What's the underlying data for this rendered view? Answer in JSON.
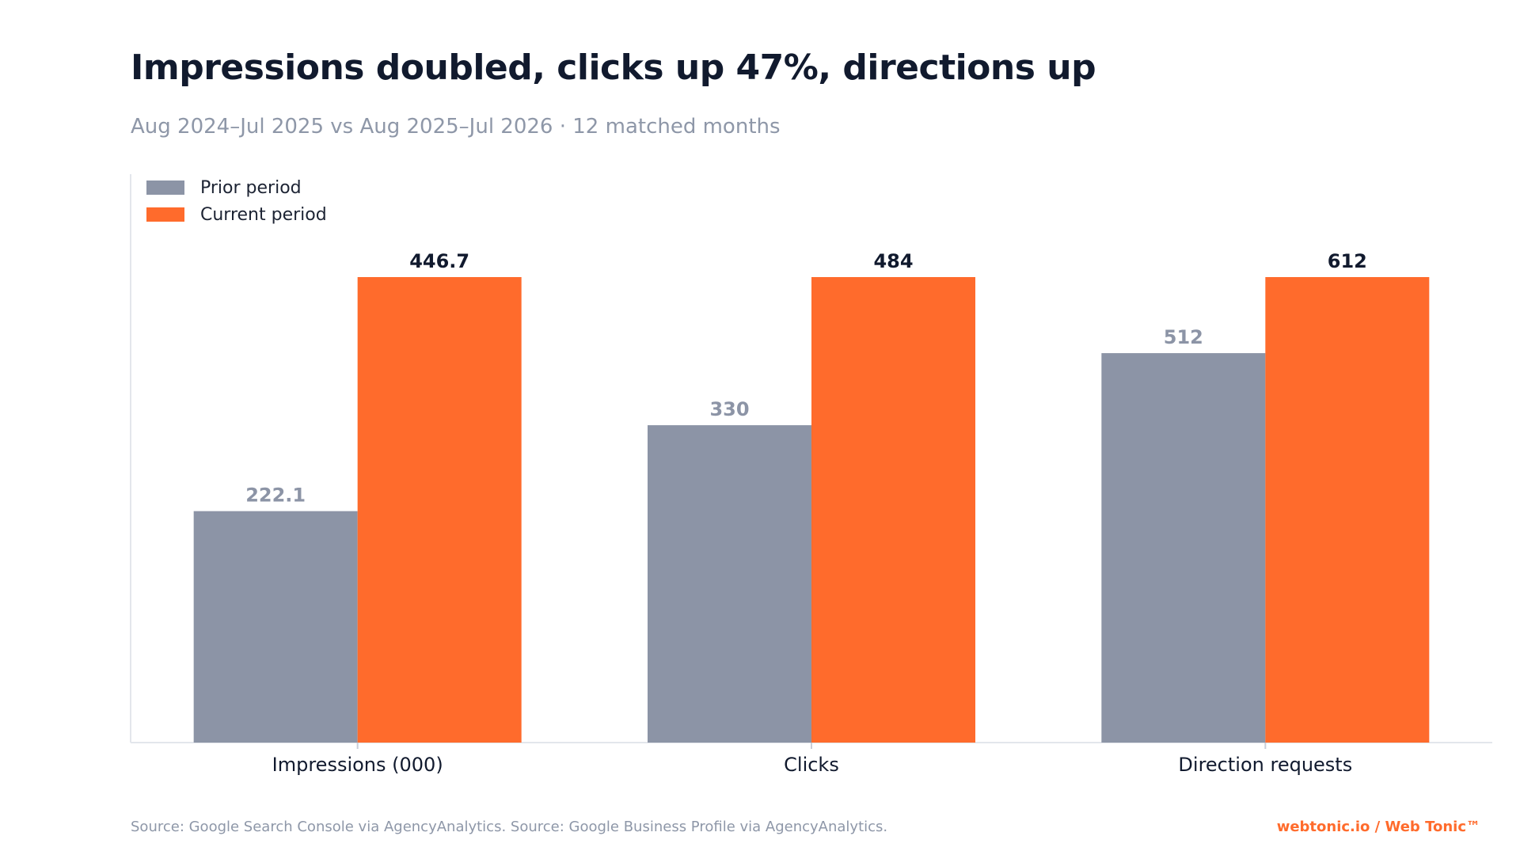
{
  "header": {
    "title": "Impressions doubled, clicks up 47%, directions up",
    "subtitle": "Aug 2024–Jul 2025 vs Aug 2025–Jul 2026 · 12 matched months"
  },
  "legend": {
    "items": [
      {
        "label": "Prior period",
        "color": "#8c94a6"
      },
      {
        "label": "Current period",
        "color": "#ff6b2c"
      }
    ]
  },
  "footer": {
    "source": "Source: Google Search Console via AgencyAnalytics. Source: Google Business Profile via AgencyAnalytics.",
    "brand": "webtonic.io / Web Tonic™"
  },
  "chart_data": {
    "type": "bar",
    "categories": [
      "Impressions (000)",
      "Clicks",
      "Direction requests"
    ],
    "series": [
      {
        "name": "Prior period",
        "values": [
          222.1,
          330,
          512
        ],
        "labels": [
          "222.1",
          "330",
          "512"
        ],
        "color": "#8c94a6"
      },
      {
        "name": "Current period",
        "values": [
          446.7,
          484,
          612
        ],
        "labels": [
          "446.7",
          "484",
          "612"
        ],
        "color": "#ff6b2c"
      }
    ],
    "note": "Each category bar group is scaled to its own maximum (current period).",
    "grid": false,
    "legend_position": "top-left"
  }
}
